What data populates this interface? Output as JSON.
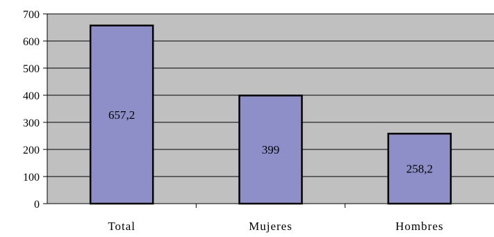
{
  "chart_data": {
    "type": "bar",
    "categories": [
      "Total",
      "Mujeres",
      "Hombres"
    ],
    "values": [
      657.2,
      399,
      258.2
    ],
    "value_labels": [
      "657,2",
      "399",
      "258,2"
    ],
    "ylim": [
      0,
      700
    ],
    "yticks": [
      0,
      100,
      200,
      300,
      400,
      500,
      600,
      700
    ],
    "ytick_labels": [
      "0",
      "100",
      "200",
      "300",
      "400",
      "500",
      "600",
      "700"
    ],
    "grid": true,
    "legend": "none",
    "colors": {
      "plot_background": "#c0c0c0",
      "bar_fill": "#8e8ec8",
      "bar_stroke": "#000000",
      "gridline": "#000000"
    }
  }
}
